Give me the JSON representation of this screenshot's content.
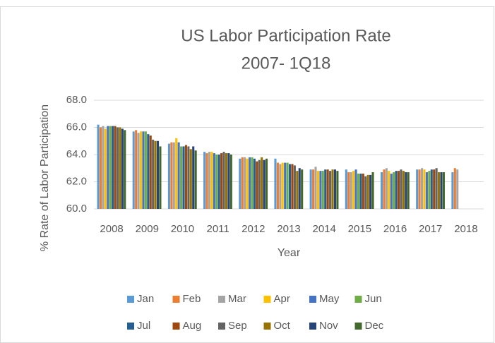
{
  "chart_data": {
    "type": "bar",
    "title": [
      "US Labor Participation Rate",
      "2007- 1Q18"
    ],
    "x_label": "Year",
    "y_label": "% Rate of Labor Participation",
    "categories": [
      "2008",
      "2009",
      "2010",
      "2011",
      "2012",
      "2013",
      "2014",
      "2015",
      "2016",
      "2017",
      "2018"
    ],
    "ylim": [
      60,
      68
    ],
    "yticks": [
      {
        "value": 60,
        "label": "60.0"
      },
      {
        "value": 62,
        "label": "62.0"
      },
      {
        "value": 64,
        "label": "64.0"
      },
      {
        "value": 66,
        "label": "66.0"
      },
      {
        "value": 68,
        "label": "68.0"
      }
    ],
    "grid": true,
    "legend": "bottom",
    "series": [
      {
        "name": "Jan",
        "color": "#5b9bd5",
        "values": [
          66.2,
          65.7,
          64.8,
          64.2,
          63.7,
          63.7,
          62.9,
          62.9,
          62.7,
          62.9,
          62.7
        ]
      },
      {
        "name": "Feb",
        "color": "#ed7d31",
        "values": [
          66.0,
          65.8,
          64.9,
          64.1,
          63.8,
          63.4,
          62.9,
          62.7,
          62.9,
          62.9,
          63.0
        ]
      },
      {
        "name": "Mar",
        "color": "#a5a5a5",
        "values": [
          66.1,
          65.6,
          64.9,
          64.2,
          63.8,
          63.3,
          63.1,
          62.7,
          63.0,
          63.0,
          62.9
        ]
      },
      {
        "name": "Apr",
        "color": "#ffc000",
        "values": [
          65.9,
          65.7,
          65.2,
          64.2,
          63.7,
          63.4,
          62.8,
          62.8,
          62.8,
          62.9,
          null
        ]
      },
      {
        "name": "May",
        "color": "#4472c4",
        "values": [
          66.1,
          65.7,
          64.9,
          64.1,
          63.8,
          63.4,
          62.8,
          62.9,
          62.6,
          62.7,
          null
        ]
      },
      {
        "name": "Jun",
        "color": "#70ad47",
        "values": [
          66.1,
          65.7,
          64.6,
          64.0,
          63.8,
          63.4,
          62.8,
          62.6,
          62.7,
          62.8,
          null
        ]
      },
      {
        "name": "Jul",
        "color": "#255e91",
        "values": [
          66.1,
          65.5,
          64.6,
          64.0,
          63.7,
          63.3,
          62.9,
          62.6,
          62.8,
          62.9,
          null
        ]
      },
      {
        "name": "Aug",
        "color": "#9e480e",
        "values": [
          66.1,
          65.4,
          64.7,
          64.1,
          63.5,
          63.3,
          62.9,
          62.6,
          62.8,
          62.9,
          null
        ]
      },
      {
        "name": "Sep",
        "color": "#636363",
        "values": [
          66.0,
          65.1,
          64.6,
          64.2,
          63.6,
          63.2,
          62.8,
          62.4,
          62.9,
          63.0,
          null
        ]
      },
      {
        "name": "Oct",
        "color": "#997300",
        "values": [
          66.0,
          65.0,
          64.4,
          64.1,
          63.8,
          62.8,
          62.9,
          62.5,
          62.8,
          62.7,
          null
        ]
      },
      {
        "name": "Nov",
        "color": "#264478",
        "values": [
          65.9,
          65.0,
          64.6,
          64.1,
          63.6,
          63.0,
          62.9,
          62.5,
          62.7,
          62.7,
          null
        ]
      },
      {
        "name": "Dec",
        "color": "#43682b",
        "values": [
          65.8,
          64.6,
          64.3,
          64.0,
          63.7,
          62.9,
          62.8,
          62.7,
          62.7,
          62.7,
          null
        ]
      }
    ]
  }
}
